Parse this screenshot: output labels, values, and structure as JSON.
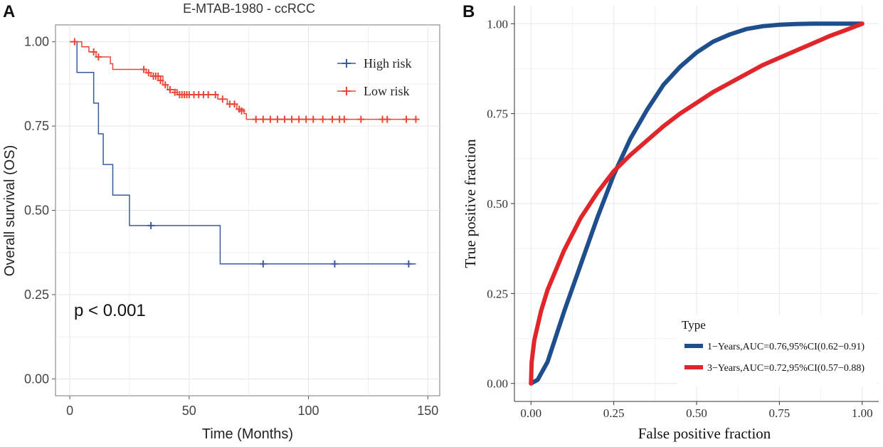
{
  "panels": [
    {
      "letter": "A"
    },
    {
      "letter": "B"
    }
  ],
  "chart_data": [
    {
      "type": "line",
      "subtype": "kaplan-meier",
      "title": "E-MTAB-1980 - ccRCC",
      "xlabel": "Time (Months)",
      "ylabel": "Overall survival (OS)",
      "xlim": [
        -6,
        155
      ],
      "ylim": [
        -0.05,
        1.05
      ],
      "xticks": [
        0,
        50,
        100,
        150
      ],
      "xtick_labels": [
        "0",
        "50",
        "100",
        "150"
      ],
      "yticks": [
        0,
        0.25,
        0.5,
        0.75,
        1.0
      ],
      "ytick_labels": [
        "0.00",
        "0.25",
        "0.50",
        "0.75",
        "1.00"
      ],
      "grid": true,
      "legend_position": "top-right",
      "annotation": "p < 0.001",
      "series": [
        {
          "name": "High risk",
          "color": "#3a5a9c",
          "steps": [
            [
              0,
              1.0
            ],
            [
              3,
              0.909
            ],
            [
              10,
              0.818
            ],
            [
              12,
              0.727
            ],
            [
              14,
              0.636
            ],
            [
              18,
              0.545
            ],
            [
              25,
              0.455
            ],
            [
              63,
              0.341
            ],
            [
              145,
              0.341
            ]
          ],
          "censors": [
            [
              34,
              0.455
            ],
            [
              81,
              0.341
            ],
            [
              111,
              0.341
            ],
            [
              142,
              0.341
            ]
          ]
        },
        {
          "name": "Low risk",
          "color": "#e8463a",
          "steps": [
            [
              0,
              1.0
            ],
            [
              5,
              0.985
            ],
            [
              8,
              0.97
            ],
            [
              11,
              0.955
            ],
            [
              17,
              0.935
            ],
            [
              18,
              0.918
            ],
            [
              32,
              0.908
            ],
            [
              34,
              0.898
            ],
            [
              39,
              0.872
            ],
            [
              41,
              0.858
            ],
            [
              45,
              0.843
            ],
            [
              62,
              0.83
            ],
            [
              66,
              0.815
            ],
            [
              70,
              0.8
            ],
            [
              73,
              0.787
            ],
            [
              74,
              0.77
            ],
            [
              145,
              0.77
            ]
          ],
          "censors": [
            [
              2,
              1.0
            ],
            [
              10,
              0.97
            ],
            [
              12,
              0.955
            ],
            [
              31,
              0.918
            ],
            [
              33,
              0.908
            ],
            [
              35,
              0.898
            ],
            [
              36,
              0.898
            ],
            [
              37,
              0.898
            ],
            [
              38,
              0.885
            ],
            [
              40,
              0.872
            ],
            [
              42,
              0.858
            ],
            [
              44,
              0.85
            ],
            [
              46,
              0.843
            ],
            [
              47,
              0.843
            ],
            [
              48,
              0.843
            ],
            [
              49,
              0.843
            ],
            [
              50,
              0.843
            ],
            [
              52,
              0.843
            ],
            [
              54,
              0.843
            ],
            [
              56,
              0.843
            ],
            [
              58,
              0.843
            ],
            [
              61,
              0.843
            ],
            [
              64,
              0.83
            ],
            [
              67,
              0.815
            ],
            [
              69,
              0.815
            ],
            [
              71,
              0.8
            ],
            [
              72,
              0.795
            ],
            [
              78,
              0.77
            ],
            [
              81,
              0.77
            ],
            [
              84,
              0.77
            ],
            [
              87,
              0.77
            ],
            [
              90,
              0.77
            ],
            [
              93,
              0.77
            ],
            [
              96,
              0.77
            ],
            [
              99,
              0.77
            ],
            [
              102,
              0.77
            ],
            [
              106,
              0.77
            ],
            [
              110,
              0.77
            ],
            [
              113,
              0.77
            ],
            [
              115,
              0.77
            ],
            [
              122,
              0.77
            ],
            [
              131,
              0.77
            ],
            [
              133,
              0.77
            ],
            [
              141,
              0.77
            ],
            [
              145,
              0.77
            ]
          ]
        }
      ]
    },
    {
      "type": "line",
      "subtype": "roc",
      "title": "",
      "xlabel": "False positive fraction",
      "ylabel": "True positive fraction",
      "xlim": [
        -0.05,
        1.05
      ],
      "ylim": [
        -0.05,
        1.05
      ],
      "xticks": [
        0,
        0.25,
        0.5,
        0.75,
        1.0
      ],
      "xtick_labels": [
        "0.00",
        "0.25",
        "0.50",
        "0.75",
        "1.00"
      ],
      "yticks": [
        0,
        0.25,
        0.5,
        0.75,
        1.0
      ],
      "ytick_labels": [
        "0.00",
        "0.25",
        "0.50",
        "0.75",
        "1.00"
      ],
      "grid": true,
      "legend_title": "Type",
      "legend_position": "bottom-right",
      "series": [
        {
          "name": "1−Years,AUC=0.76,95%CI(0.62−0.91)",
          "color": "#1f4e8c",
          "x": [
            0.0,
            0.02,
            0.05,
            0.1,
            0.15,
            0.2,
            0.25,
            0.3,
            0.35,
            0.4,
            0.45,
            0.5,
            0.55,
            0.6,
            0.65,
            0.7,
            0.75,
            0.8,
            0.85,
            0.9,
            1.0
          ],
          "y": [
            0.0,
            0.01,
            0.06,
            0.2,
            0.33,
            0.46,
            0.58,
            0.68,
            0.76,
            0.83,
            0.88,
            0.92,
            0.95,
            0.97,
            0.985,
            0.993,
            0.997,
            0.999,
            1.0,
            1.0,
            1.0
          ]
        },
        {
          "name": "3−Years,AUC=0.72,95%CI(0.57−0.88)",
          "color": "#e0262a",
          "x": [
            0.0,
            0.002,
            0.01,
            0.03,
            0.05,
            0.1,
            0.15,
            0.2,
            0.25,
            0.3,
            0.35,
            0.4,
            0.45,
            0.5,
            0.55,
            0.6,
            0.65,
            0.7,
            0.75,
            0.8,
            0.85,
            0.9,
            0.95,
            1.0
          ],
          "y": [
            0.0,
            0.06,
            0.12,
            0.2,
            0.26,
            0.37,
            0.46,
            0.53,
            0.59,
            0.635,
            0.675,
            0.715,
            0.75,
            0.78,
            0.81,
            0.835,
            0.86,
            0.885,
            0.905,
            0.925,
            0.945,
            0.965,
            0.982,
            1.0
          ]
        }
      ]
    }
  ]
}
